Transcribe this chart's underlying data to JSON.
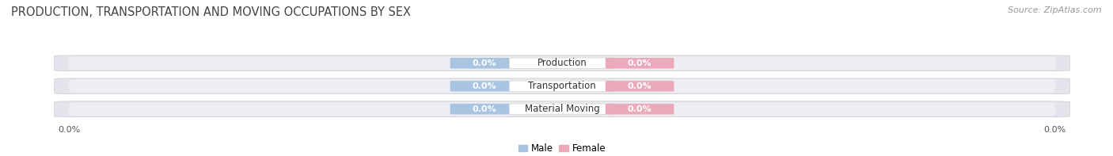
{
  "title": "PRODUCTION, TRANSPORTATION AND MOVING OCCUPATIONS BY SEX",
  "source": "Source: ZipAtlas.com",
  "categories": [
    "Production",
    "Transportation",
    "Material Moving"
  ],
  "male_values": [
    0.0,
    0.0,
    0.0
  ],
  "female_values": [
    0.0,
    0.0,
    0.0
  ],
  "male_color": "#a8c8e8",
  "female_color": "#f0b8c8",
  "bar_bg_color_top": "#e8e8ee",
  "bar_bg_color_bottom": "#d8d8e0",
  "male_label": "Male",
  "female_label": "Female",
  "bar_height": 0.62,
  "bar_gap": 0.1,
  "title_fontsize": 10.5,
  "source_fontsize": 8,
  "label_fontsize": 8.5,
  "category_fontsize": 8.5,
  "value_fontsize": 8,
  "axis_label_fontsize": 8,
  "background_color": "#ffffff",
  "badge_color_male": "#a8c4e0",
  "badge_color_female": "#eaaabb",
  "label_box_color": "#f8f8f8",
  "text_color": "#444444",
  "source_color": "#888888"
}
